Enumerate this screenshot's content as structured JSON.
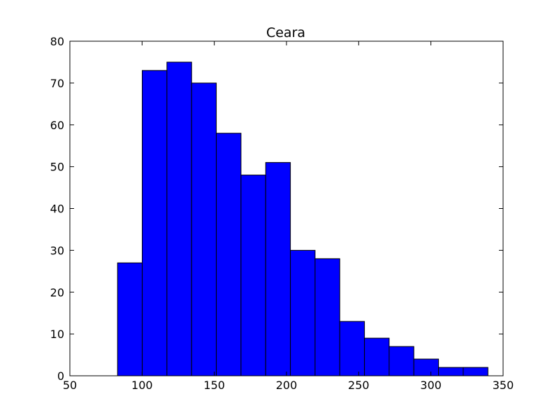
{
  "chart_data": {
    "type": "bar",
    "title": "Ceara",
    "xlabel": "",
    "ylabel": "",
    "xlim": [
      50,
      350
    ],
    "ylim": [
      0,
      80
    ],
    "xticks": [
      50,
      100,
      150,
      200,
      250,
      300,
      350
    ],
    "yticks": [
      0,
      10,
      20,
      30,
      40,
      50,
      60,
      70,
      80
    ],
    "bins": [
      {
        "start": 83.0,
        "end": 100.1,
        "count": 27
      },
      {
        "start": 100.1,
        "end": 117.2,
        "count": 73
      },
      {
        "start": 117.2,
        "end": 134.3,
        "count": 75
      },
      {
        "start": 134.3,
        "end": 151.4,
        "count": 70
      },
      {
        "start": 151.4,
        "end": 168.5,
        "count": 58
      },
      {
        "start": 168.5,
        "end": 185.6,
        "count": 48
      },
      {
        "start": 185.6,
        "end": 202.7,
        "count": 51
      },
      {
        "start": 202.7,
        "end": 219.8,
        "count": 30
      },
      {
        "start": 219.8,
        "end": 236.9,
        "count": 28
      },
      {
        "start": 236.9,
        "end": 254.0,
        "count": 13
      },
      {
        "start": 254.0,
        "end": 271.1,
        "count": 9
      },
      {
        "start": 271.1,
        "end": 288.2,
        "count": 7
      },
      {
        "start": 288.2,
        "end": 305.3,
        "count": 4
      },
      {
        "start": 305.3,
        "end": 322.4,
        "count": 2
      },
      {
        "start": 322.4,
        "end": 339.5,
        "count": 2
      }
    ],
    "bar_color": "#0000ff",
    "edge_color": "#000000",
    "grid": false,
    "legend": "none"
  }
}
